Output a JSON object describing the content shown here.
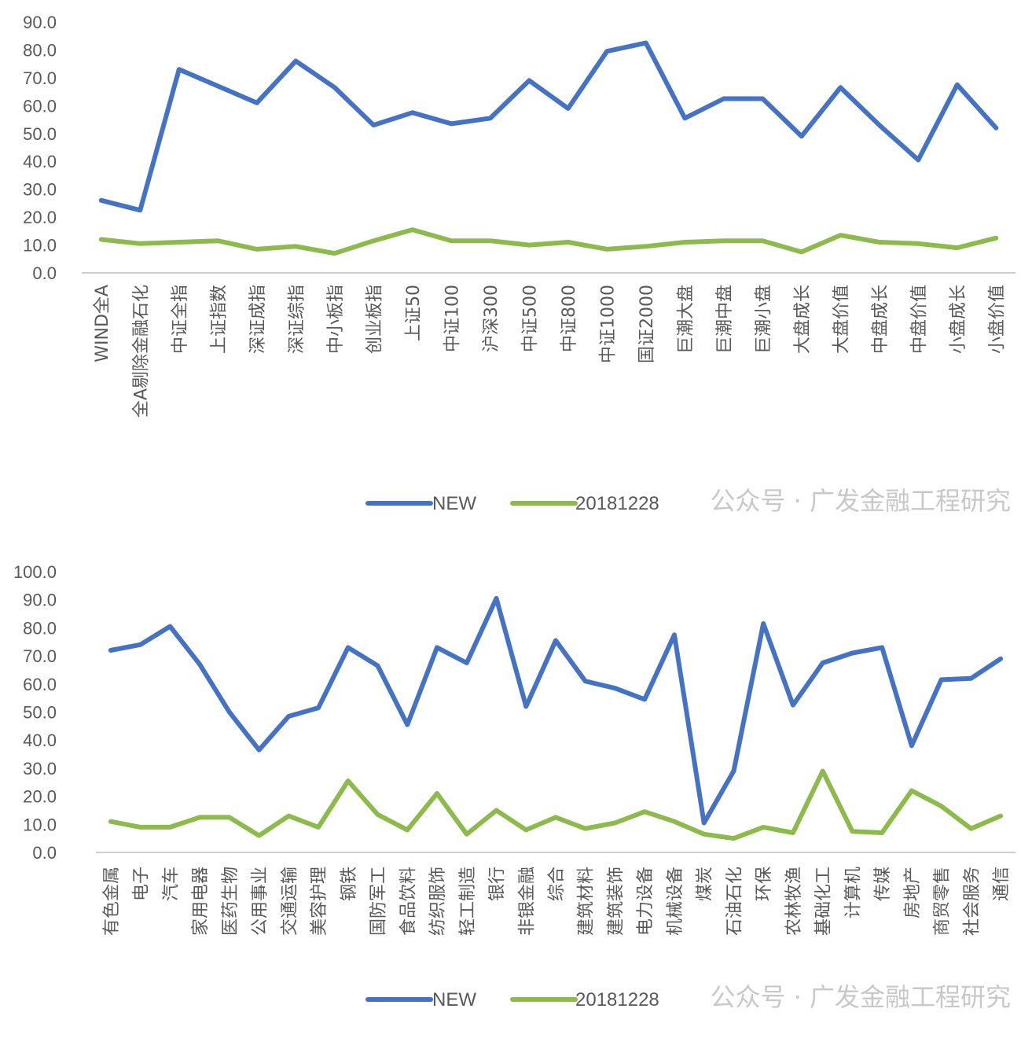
{
  "watermark": "公众号 · 广发金融工程研究",
  "colors": {
    "new": "#4472C4",
    "old": "#8CBB4C",
    "axis": "#BFBFBF",
    "text": "#595959"
  },
  "chart_data": [
    {
      "type": "line",
      "ylim": [
        0,
        90
      ],
      "ytick_step": 10,
      "categories": [
        "WIND全A",
        "全A剔除金融石化",
        "中证全指",
        "上证指数",
        "深证成指",
        "深证综指",
        "中小板指",
        "创业板指",
        "上证50",
        "中证100",
        "沪深300",
        "中证500",
        "中证800",
        "中证1000",
        "国证2000",
        "巨潮大盘",
        "巨潮中盘",
        "巨潮小盘",
        "大盘成长",
        "大盘价值",
        "中盘成长",
        "中盘价值",
        "小盘成长",
        "小盘价值"
      ],
      "series": [
        {
          "name": "NEW",
          "values": [
            26.0,
            22.5,
            73.0,
            67.0,
            61.0,
            76.0,
            66.5,
            53.0,
            57.5,
            53.5,
            55.5,
            69.0,
            59.0,
            79.5,
            82.5,
            55.5,
            62.5,
            62.5,
            49.0,
            66.5,
            53.0,
            40.5,
            67.5,
            52.0
          ]
        },
        {
          "name": "20181228",
          "values": [
            12.0,
            10.5,
            11.0,
            11.5,
            8.5,
            9.5,
            7.0,
            11.5,
            15.5,
            11.5,
            11.5,
            10.0,
            11.0,
            8.5,
            9.5,
            11.0,
            11.5,
            11.5,
            7.5,
            13.5,
            11.0,
            10.5,
            9.0,
            12.5
          ]
        }
      ]
    },
    {
      "type": "line",
      "ylim": [
        0,
        100
      ],
      "ytick_step": 10,
      "categories": [
        "有色金属",
        "电子",
        "汽车",
        "家用电器",
        "医药生物",
        "公用事业",
        "交通运输",
        "美容护理",
        "钢铁",
        "国防军工",
        "食品饮料",
        "纺织服饰",
        "轻工制造",
        "银行",
        "非银金融",
        "综合",
        "建筑材料",
        "建筑装饰",
        "电力设备",
        "机械设备",
        "煤炭",
        "石油石化",
        "环保",
        "农林牧渔",
        "基础化工",
        "计算机",
        "传媒",
        "房地产",
        "商贸零售",
        "社会服务",
        "通信"
      ],
      "series": [
        {
          "name": "NEW",
          "values": [
            72.0,
            74.0,
            80.5,
            67.0,
            50.0,
            36.5,
            48.5,
            51.5,
            73.0,
            66.5,
            45.5,
            73.0,
            67.5,
            90.5,
            52.0,
            75.5,
            61.0,
            58.5,
            54.5,
            77.5,
            10.5,
            29.0,
            81.5,
            52.5,
            67.5,
            71.0,
            73.0,
            38.0,
            61.5,
            62.0,
            69.0
          ]
        },
        {
          "name": "20181228",
          "values": [
            11.0,
            9.0,
            9.0,
            12.5,
            12.5,
            6.0,
            13.0,
            9.0,
            25.5,
            13.5,
            8.0,
            21.0,
            6.5,
            15.0,
            8.0,
            12.5,
            8.5,
            10.5,
            14.5,
            11.0,
            6.5,
            5.0,
            9.0,
            7.0,
            29.0,
            7.5,
            7.0,
            22.0,
            16.5,
            8.5,
            13.0
          ]
        }
      ]
    }
  ]
}
